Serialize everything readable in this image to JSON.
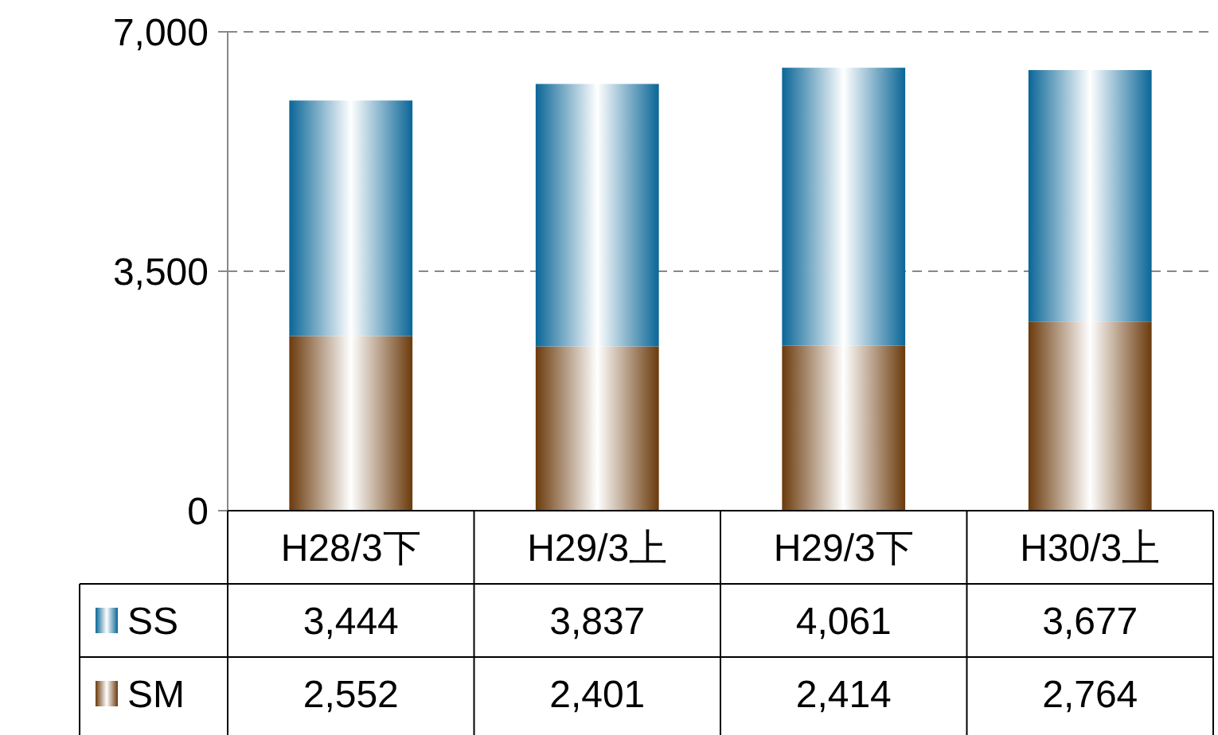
{
  "chart_data": {
    "type": "bar",
    "stacked": true,
    "categories": [
      "H28/3下",
      "H29/3上",
      "H29/3下",
      "H30/3上"
    ],
    "series": [
      {
        "name": "SM",
        "color": "#6b3a0c",
        "values": [
          2552,
          2401,
          2414,
          2764
        ],
        "value_labels": [
          "2,552",
          "2,401",
          "2,414",
          "2,764"
        ]
      },
      {
        "name": "SS",
        "color": "#0a6697",
        "values": [
          3444,
          3837,
          4061,
          3677
        ],
        "value_labels": [
          "3,444",
          "3,837",
          "4,061",
          "3,677"
        ]
      }
    ],
    "ylim": [
      0,
      7000
    ],
    "yticks": [
      {
        "value": 0,
        "label": "0"
      },
      {
        "value": 3500,
        "label": "3,500"
      },
      {
        "value": 7000,
        "label": "7,000"
      }
    ],
    "grid": "y",
    "legend": "bottom"
  }
}
